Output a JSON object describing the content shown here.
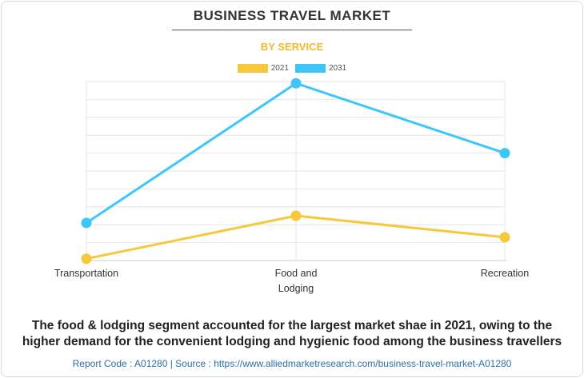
{
  "header": {
    "title": "BUSINESS TRAVEL MARKET",
    "subtitle": "BY SERVICE"
  },
  "chart_data": {
    "type": "line",
    "categories": [
      "Transportation",
      "Food and Lodging",
      "Recreation"
    ],
    "category_lines": [
      [
        "Transportation"
      ],
      [
        "Food and",
        "Lodging"
      ],
      [
        "Recreation"
      ]
    ],
    "series": [
      {
        "name": "2021",
        "color": "#f7c83a",
        "values": [
          1.0,
          25.0,
          13.0
        ]
      },
      {
        "name": "2031",
        "color": "#3ec6fb",
        "values": [
          21.0,
          99.0,
          60.0
        ]
      }
    ],
    "ylim": [
      0,
      100
    ],
    "title": "BUSINESS TRAVEL MARKET",
    "subtitle": "BY SERVICE",
    "xlabel": "",
    "ylabel": "",
    "grid": true,
    "legend": "top"
  },
  "caption": {
    "line1": "The food & lodging segment accounted for the largest market shae in 2021, owing to the",
    "line2": "higher demand for the convenient lodging and hygienic food among the business travellers"
  },
  "footer": {
    "text": "Report Code : A01280  |  Source : https://www.alliedmarketresearch.com/business-travel-market-A01280"
  }
}
